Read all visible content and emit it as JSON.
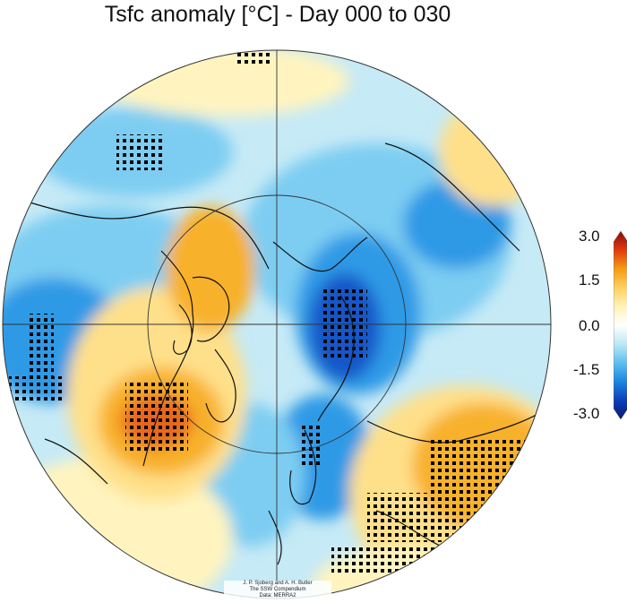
{
  "title": "Tsfc anomaly [°C] - Day 000 to 030",
  "colorbar": {
    "labels": [
      "3.0",
      "1.5",
      "0.0",
      "-1.5",
      "-3.0"
    ],
    "values": [
      3.0,
      1.5,
      0.0,
      -1.5,
      -3.0
    ],
    "colors": [
      "#8a0a0a",
      "#e03a0e",
      "#f59a12",
      "#ffd060",
      "#fff3b8",
      "#ffffff",
      "#bde8f5",
      "#5cc0ee",
      "#1a86e0",
      "#0b3fb8",
      "#0a1a6e"
    ]
  },
  "credit": {
    "line1": "J. P. Sjoberg and A. H. Butler",
    "line2": "The SSW Compendium",
    "line3": "Data: MERRA2"
  },
  "map_colors": {
    "base_warm": "#fff4bf",
    "light_warm": "#ffe08a",
    "orange": "#f8b12a",
    "red_orange": "#e8661a",
    "light_cold": "#c6eaf6",
    "cold": "#7dcdf2",
    "blue": "#2f9ae6",
    "dark_blue": "#1456c8",
    "coast": "#111111",
    "grid": "#333333",
    "stipple": "#000000"
  }
}
